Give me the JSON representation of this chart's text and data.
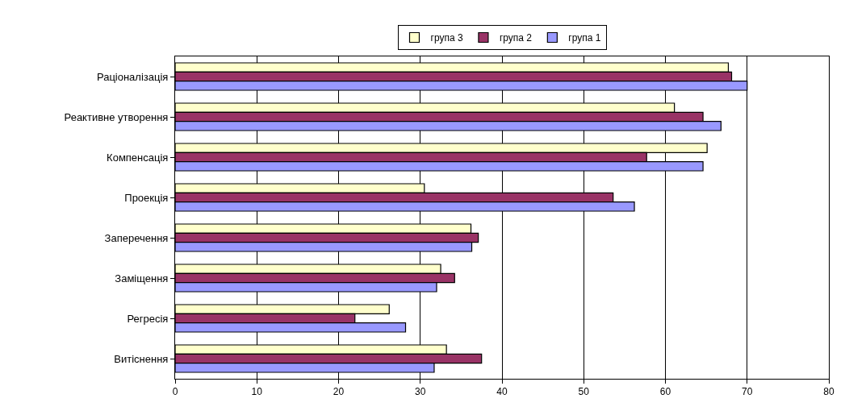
{
  "chart_data": {
    "type": "bar",
    "orientation": "horizontal",
    "categories": [
      "Раціоналізація",
      "Реактивне утворення",
      "Компенсація",
      "Проекція",
      "Заперечення",
      "Заміщення",
      "Регресія",
      "Витіснення"
    ],
    "series": [
      {
        "name": "група 3",
        "color": "#ffffcc",
        "values": [
          67.7,
          61.1,
          65.1,
          30.5,
          36.2,
          32.5,
          26.2,
          33.2
        ]
      },
      {
        "name": "група 2",
        "color": "#993366",
        "values": [
          68.1,
          64.6,
          57.7,
          53.6,
          37.1,
          34.2,
          22.0,
          37.5
        ]
      },
      {
        "name": "група 1",
        "color": "#9999ff",
        "values": [
          70.0,
          66.8,
          64.6,
          56.2,
          36.3,
          32.0,
          28.2,
          31.7
        ]
      }
    ],
    "xlim": [
      0,
      80
    ],
    "xticks": [
      0,
      10,
      20,
      30,
      40,
      50,
      60,
      70,
      80
    ],
    "grid": "x",
    "legend": "top"
  }
}
